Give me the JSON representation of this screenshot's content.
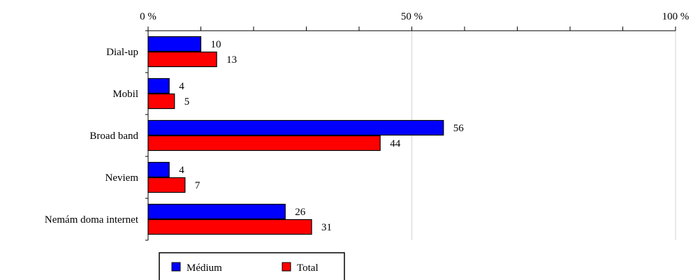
{
  "chart_data": {
    "type": "bar",
    "orientation": "horizontal",
    "categories": [
      "Dial-up",
      "Mobil",
      "Broad band",
      "Neviem",
      "Nemám doma internet"
    ],
    "series": [
      {
        "name": "Médium",
        "color": "#0000ff",
        "values": [
          10,
          4,
          56,
          4,
          26
        ]
      },
      {
        "name": "Total",
        "color": "#ff0000",
        "values": [
          13,
          5,
          44,
          7,
          31
        ]
      }
    ],
    "xlim": [
      0,
      100
    ],
    "x_tick_labels": [
      {
        "value": 0,
        "label": "0 %"
      },
      {
        "value": 50,
        "label": "50 %"
      },
      {
        "value": 100,
        "label": "100 %"
      }
    ],
    "x_minor_ticks_every": 10,
    "x_axis_position": "top",
    "grid": "vertical at 50 and 100",
    "data_labels": true,
    "legend_position": "bottom-left"
  }
}
